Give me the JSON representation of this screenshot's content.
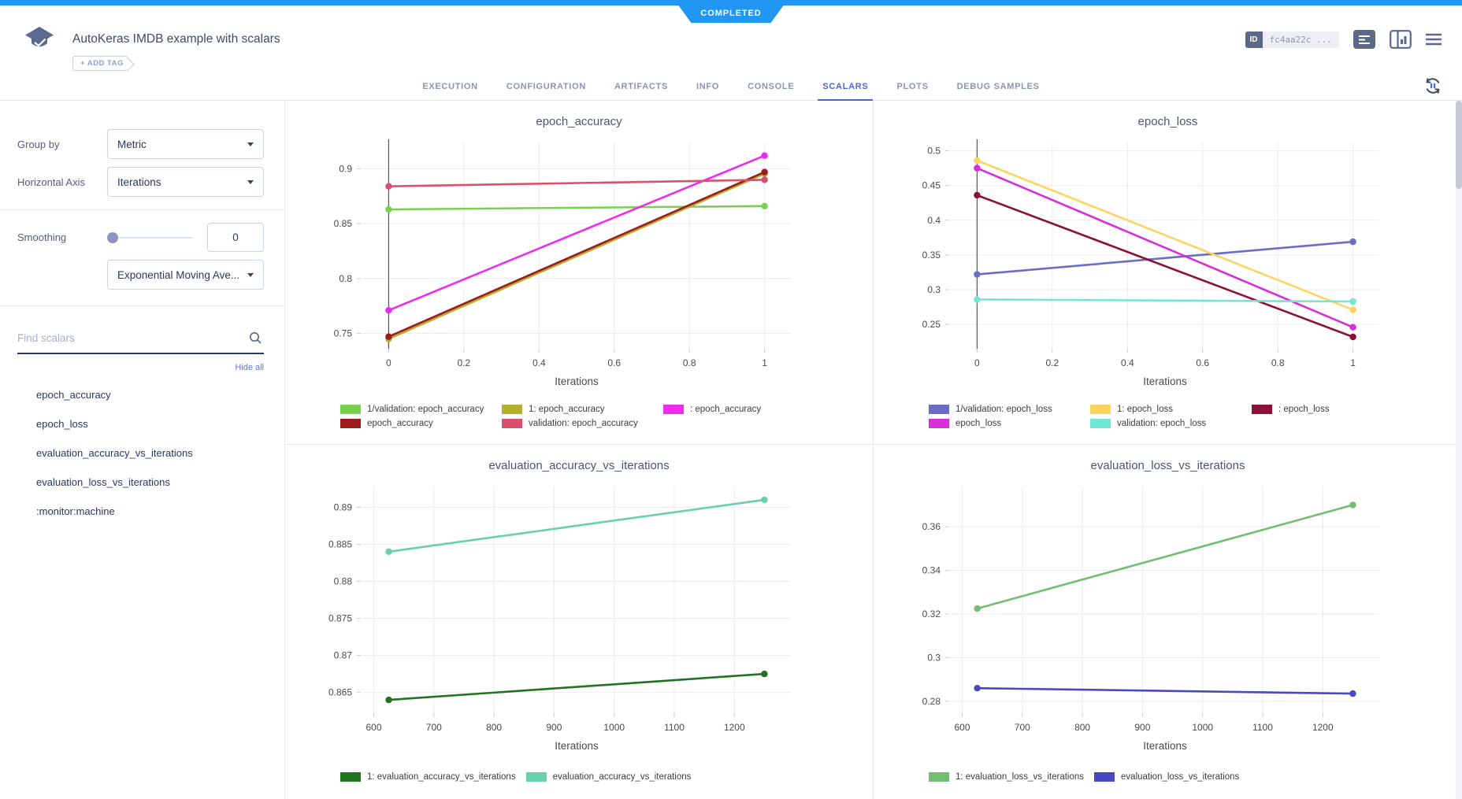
{
  "status_badge": "COMPLETED",
  "colors": {
    "top_bar": "#2196f3",
    "active_tab": "#4d66d4"
  },
  "header": {
    "title": "AutoKeras IMDB example with scalars",
    "add_tag_label": "+ ADD TAG",
    "id_label": "ID",
    "id_value": "fc4aa22c ..."
  },
  "tabs": [
    "EXECUTION",
    "CONFIGURATION",
    "ARTIFACTS",
    "INFO",
    "CONSOLE",
    "SCALARS",
    "PLOTS",
    "DEBUG SAMPLES"
  ],
  "sidebar": {
    "group_by_label": "Group by",
    "group_by_value": "Metric",
    "horizontal_axis_label": "Horizontal Axis",
    "horizontal_axis_value": "Iterations",
    "smoothing_label": "Smoothing",
    "smoothing_value": "0",
    "smoothing_method": "Exponential Moving Ave...",
    "search_placeholder": "Find scalars",
    "hide_all_label": "Hide all",
    "scalars": [
      "epoch_accuracy",
      "epoch_loss",
      "evaluation_accuracy_vs_iterations",
      "evaluation_loss_vs_iterations",
      ":monitor:machine"
    ]
  },
  "chart_data": [
    {
      "type": "line",
      "title": "epoch_accuracy",
      "xlabel": "Iterations",
      "xlim": [
        -0.07,
        1.07
      ],
      "ylim": [
        0.736,
        0.924
      ],
      "xticks": [
        0,
        0.2,
        0.4,
        0.6,
        0.8,
        1
      ],
      "yticks": [
        0.75,
        0.8,
        0.85,
        0.9
      ],
      "zeroline_x": 0,
      "legend_columns": 3,
      "series": [
        {
          "name": "1/validation: epoch_accuracy",
          "color": "#77d14f",
          "x": [
            0,
            1
          ],
          "y": [
            0.863,
            0.866
          ]
        },
        {
          "name": "1: epoch_accuracy",
          "color": "#b5af2f",
          "x": [
            0,
            1
          ],
          "y": [
            0.745,
            0.8955
          ]
        },
        {
          "name": ": epoch_accuracy",
          "color": "#ee2bee",
          "x": [
            0,
            1
          ],
          "y": [
            0.771,
            0.912
          ]
        },
        {
          "name": "epoch_accuracy",
          "color": "#9d1c1c",
          "x": [
            0,
            1
          ],
          "y": [
            0.747,
            0.897
          ]
        },
        {
          "name": "validation: epoch_accuracy",
          "color": "#d8506c",
          "x": [
            0,
            1
          ],
          "y": [
            0.884,
            0.89
          ]
        }
      ]
    },
    {
      "type": "line",
      "title": "epoch_loss",
      "xlabel": "Iterations",
      "xlim": [
        -0.07,
        1.07
      ],
      "ylim": [
        0.215,
        0.512
      ],
      "xticks": [
        0,
        0.2,
        0.4,
        0.6,
        0.8,
        1
      ],
      "yticks": [
        0.25,
        0.3,
        0.35,
        0.4,
        0.45,
        0.5
      ],
      "zeroline_x": 0,
      "legend_columns": 3,
      "series": [
        {
          "name": "1/validation: epoch_loss",
          "color": "#6b6cc3",
          "x": [
            0,
            1
          ],
          "y": [
            0.322,
            0.369
          ]
        },
        {
          "name": "1: epoch_loss",
          "color": "#fed45f",
          "x": [
            0,
            1
          ],
          "y": [
            0.486,
            0.271
          ]
        },
        {
          "name": ": epoch_loss",
          "color": "#8d1038",
          "x": [
            0,
            1
          ],
          "y": [
            0.436,
            0.232
          ]
        },
        {
          "name": "epoch_loss",
          "color": "#d72ed7",
          "x": [
            0,
            1
          ],
          "y": [
            0.475,
            0.246
          ]
        },
        {
          "name": "validation: epoch_loss",
          "color": "#70e7d3",
          "x": [
            0,
            1
          ],
          "y": [
            0.286,
            0.283
          ]
        }
      ]
    },
    {
      "type": "line",
      "title": "evaluation_accuracy_vs_iterations",
      "xlabel": "Iterations",
      "xlim": [
        581,
        1294
      ],
      "ylim": [
        0.8622,
        0.8928
      ],
      "xticks": [
        600,
        700,
        800,
        900,
        1000,
        1100,
        1200
      ],
      "yticks": [
        0.865,
        0.87,
        0.875,
        0.88,
        0.885,
        0.89
      ],
      "zeroline_x": null,
      "legend_columns": 0,
      "series": [
        {
          "name": "1: evaluation_accuracy_vs_iterations",
          "color": "#207320",
          "x": [
            625,
            1250
          ],
          "y": [
            0.864,
            0.8675
          ]
        },
        {
          "name": "evaluation_accuracy_vs_iterations",
          "color": "#68d1ac",
          "x": [
            625,
            1250
          ],
          "y": [
            0.884,
            0.891
          ]
        }
      ]
    },
    {
      "type": "line",
      "title": "evaluation_loss_vs_iterations",
      "xlabel": "Iterations",
      "xlim": [
        581,
        1294
      ],
      "ylim": [
        0.2745,
        0.3785
      ],
      "xticks": [
        600,
        700,
        800,
        900,
        1000,
        1100,
        1200
      ],
      "yticks": [
        0.28,
        0.3,
        0.32,
        0.34,
        0.36
      ],
      "zeroline_x": null,
      "legend_columns": 0,
      "series": [
        {
          "name": "1: evaluation_loss_vs_iterations",
          "color": "#72bd72",
          "x": [
            625,
            1250
          ],
          "y": [
            0.3225,
            0.37
          ]
        },
        {
          "name": "evaluation_loss_vs_iterations",
          "color": "#4848c3",
          "x": [
            625,
            1250
          ],
          "y": [
            0.286,
            0.2835
          ]
        }
      ]
    }
  ]
}
